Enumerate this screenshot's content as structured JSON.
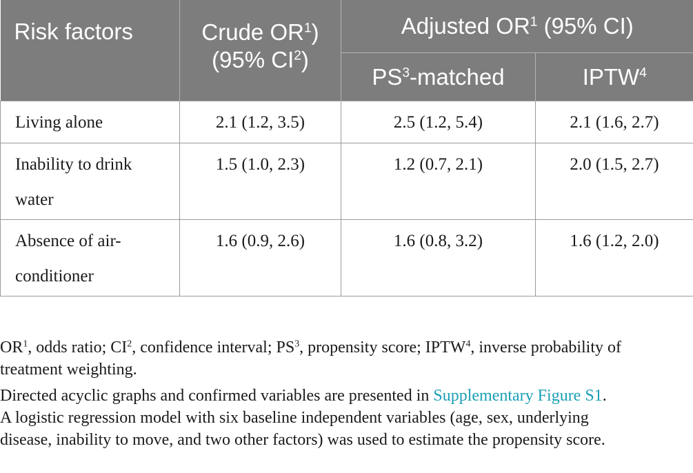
{
  "table": {
    "header": {
      "risk_factors": "Risk factors",
      "crude_line1": "Crude OR",
      "crude_line1_sup": "1",
      "crude_line1_end": ")",
      "crude_line2": "(95% CI",
      "crude_line2_sup": "2",
      "crude_line2_end": ")",
      "adjusted": "Adjusted OR",
      "adjusted_sup": "1",
      "adjusted_end": " (95% CI)",
      "ps_label": "PS",
      "ps_sup": "3",
      "ps_end": "-matched",
      "iptw_label": "IPTW",
      "iptw_sup": "4"
    },
    "rows": [
      {
        "factor_line1": "Living alone",
        "factor_line2": "",
        "crude": "2.1 (1.2, 3.5)",
        "ps_matched": "2.5 (1.2, 5.4)",
        "iptw": "2.1 (1.6, 2.7)"
      },
      {
        "factor_line1": "Inability to drink",
        "factor_line2": "water",
        "crude": "1.5 (1.0, 2.3)",
        "ps_matched": "1.2 (0.7, 2.1)",
        "iptw": "2.0 (1.5, 2.7)"
      },
      {
        "factor_line1": "Absence of air-",
        "factor_line2": "conditioner",
        "crude": "1.6 (0.9, 2.6)",
        "ps_matched": "1.6 (0.8, 3.2)",
        "iptw": "1.6 (1.2, 2.0)"
      }
    ]
  },
  "footnotes": {
    "abbrev": {
      "or": "OR",
      "or_sup": "1",
      "or_def": ", odds ratio; ",
      "ci": "CI",
      "ci_sup": "2",
      "ci_def": ", confidence interval; ",
      "ps": "PS",
      "ps_sup": "3",
      "ps_def": ", propensity score; ",
      "iptw": "IPTW",
      "iptw_sup": "4",
      "iptw_def": ", inverse probability of",
      "line2": "treatment weighting."
    },
    "dag_text": "Directed acyclic graphs and confirmed variables are presented in ",
    "dag_link": "Supplementary Figure S1",
    "dag_end": ".",
    "logistic_line1": "A logistic regression model with six baseline independent variables (age, sex, underlying",
    "logistic_line2": "disease, inability to move, and two other factors) was used to estimate the propensity score."
  },
  "colors": {
    "header_bg": "#7d7d7d",
    "header_text": "#ffffff",
    "link": "#1a9fb5",
    "border": "#9a9a9a"
  }
}
